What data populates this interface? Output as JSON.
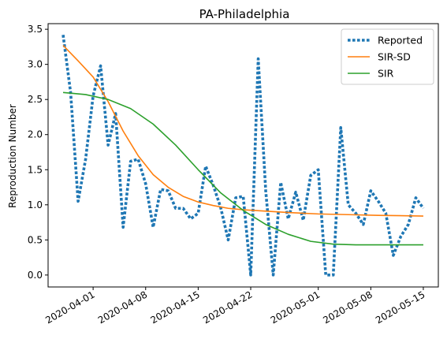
{
  "chart_data": {
    "type": "line",
    "title": "PA-Philadelphia",
    "xlabel": "",
    "ylabel": "Reproduction Number",
    "ylim": [
      -0.17,
      3.58
    ],
    "x_range": [
      "2020-03-26",
      "2020-05-17"
    ],
    "x_ticks": [
      "2020-04-01",
      "2020-04-08",
      "2020-04-15",
      "2020-04-22",
      "2020-05-01",
      "2020-05-08",
      "2020-05-15"
    ],
    "y_ticks": [
      "0.0",
      "0.5",
      "1.0",
      "1.5",
      "2.0",
      "2.5",
      "3.0",
      "3.5"
    ],
    "grid": false,
    "legend_position": "top-right",
    "series": [
      {
        "name": "Reported",
        "style": "dotted",
        "color": "#1f77b4",
        "points": [
          [
            "2020-03-28",
            3.42
          ],
          [
            "2020-03-29",
            2.6
          ],
          [
            "2020-03-30",
            1.05
          ],
          [
            "2020-03-31",
            1.65
          ],
          [
            "2020-04-01",
            2.55
          ],
          [
            "2020-04-02",
            2.98
          ],
          [
            "2020-04-03",
            1.85
          ],
          [
            "2020-04-04",
            2.3
          ],
          [
            "2020-04-05",
            0.68
          ],
          [
            "2020-04-06",
            1.62
          ],
          [
            "2020-04-07",
            1.65
          ],
          [
            "2020-04-08",
            1.3
          ],
          [
            "2020-04-09",
            0.68
          ],
          [
            "2020-04-10",
            1.22
          ],
          [
            "2020-04-11",
            1.2
          ],
          [
            "2020-04-12",
            0.95
          ],
          [
            "2020-04-13",
            0.95
          ],
          [
            "2020-04-14",
            0.8
          ],
          [
            "2020-04-15",
            0.88
          ],
          [
            "2020-04-16",
            1.55
          ],
          [
            "2020-04-17",
            1.28
          ],
          [
            "2020-04-18",
            0.96
          ],
          [
            "2020-04-19",
            0.5
          ],
          [
            "2020-04-20",
            1.1
          ],
          [
            "2020-04-21",
            1.12
          ],
          [
            "2020-04-22",
            0.0
          ],
          [
            "2020-04-23",
            3.08
          ],
          [
            "2020-04-24",
            1.2
          ],
          [
            "2020-04-25",
            0.0
          ],
          [
            "2020-04-26",
            1.32
          ],
          [
            "2020-04-27",
            0.8
          ],
          [
            "2020-04-28",
            1.18
          ],
          [
            "2020-04-29",
            0.78
          ],
          [
            "2020-04-30",
            1.42
          ],
          [
            "2020-05-01",
            1.5
          ],
          [
            "2020-05-02",
            0.0
          ],
          [
            "2020-05-03",
            0.0
          ],
          [
            "2020-05-04",
            2.1
          ],
          [
            "2020-05-05",
            1.0
          ],
          [
            "2020-05-06",
            0.88
          ],
          [
            "2020-05-07",
            0.72
          ],
          [
            "2020-05-08",
            1.2
          ],
          [
            "2020-05-09",
            1.05
          ],
          [
            "2020-05-10",
            0.88
          ],
          [
            "2020-05-11",
            0.28
          ],
          [
            "2020-05-12",
            0.55
          ],
          [
            "2020-05-13",
            0.72
          ],
          [
            "2020-05-14",
            1.1
          ],
          [
            "2020-05-15",
            0.95
          ]
        ]
      },
      {
        "name": "SIR-SD",
        "style": "solid",
        "color": "#ff7f0e",
        "points": [
          [
            "2020-03-28",
            3.27
          ],
          [
            "2020-03-30",
            3.05
          ],
          [
            "2020-04-01",
            2.82
          ],
          [
            "2020-04-03",
            2.47
          ],
          [
            "2020-04-05",
            2.05
          ],
          [
            "2020-04-07",
            1.7
          ],
          [
            "2020-04-09",
            1.43
          ],
          [
            "2020-04-11",
            1.25
          ],
          [
            "2020-04-13",
            1.12
          ],
          [
            "2020-04-15",
            1.04
          ],
          [
            "2020-04-17",
            0.99
          ],
          [
            "2020-04-19",
            0.95
          ],
          [
            "2020-04-21",
            0.93
          ],
          [
            "2020-04-24",
            0.91
          ],
          [
            "2020-04-27",
            0.89
          ],
          [
            "2020-05-01",
            0.87
          ],
          [
            "2020-05-05",
            0.86
          ],
          [
            "2020-05-09",
            0.85
          ],
          [
            "2020-05-15",
            0.84
          ]
        ]
      },
      {
        "name": "SIR",
        "style": "solid",
        "color": "#2ca02c",
        "points": [
          [
            "2020-03-28",
            2.6
          ],
          [
            "2020-03-31",
            2.57
          ],
          [
            "2020-04-03",
            2.5
          ],
          [
            "2020-04-06",
            2.37
          ],
          [
            "2020-04-09",
            2.15
          ],
          [
            "2020-04-12",
            1.85
          ],
          [
            "2020-04-15",
            1.5
          ],
          [
            "2020-04-18",
            1.17
          ],
          [
            "2020-04-21",
            0.92
          ],
          [
            "2020-04-24",
            0.72
          ],
          [
            "2020-04-27",
            0.58
          ],
          [
            "2020-04-30",
            0.48
          ],
          [
            "2020-05-03",
            0.44
          ],
          [
            "2020-05-06",
            0.43
          ],
          [
            "2020-05-10",
            0.43
          ],
          [
            "2020-05-15",
            0.43
          ]
        ]
      }
    ]
  }
}
